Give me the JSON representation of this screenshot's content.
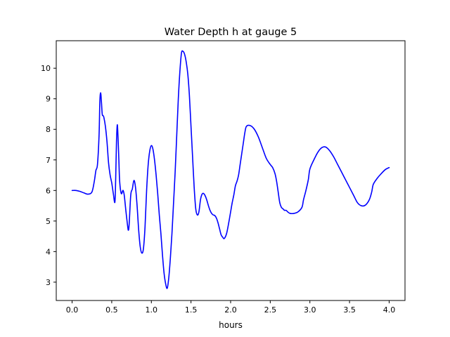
{
  "figure": {
    "title": "Water Depth h at gauge 5",
    "xlabel": "hours",
    "ylabel": ""
  },
  "chart_data": {
    "type": "line",
    "title": "Water Depth h at gauge 5",
    "xlabel": "hours",
    "ylabel": "",
    "xlim": [
      -0.2,
      4.2
    ],
    "ylim": [
      2.4,
      10.9
    ],
    "xticks": [
      0.0,
      0.5,
      1.0,
      1.5,
      2.0,
      2.5,
      3.0,
      3.5,
      4.0
    ],
    "xtick_labels": [
      "0.0",
      "0.5",
      "1.0",
      "1.5",
      "2.0",
      "2.5",
      "3.0",
      "3.5",
      "4.0"
    ],
    "yticks": [
      3,
      4,
      5,
      6,
      7,
      8,
      9,
      10
    ],
    "ytick_labels": [
      "3",
      "4",
      "5",
      "6",
      "7",
      "8",
      "9",
      "10"
    ],
    "grid": false,
    "series": [
      {
        "color": "#0000ff",
        "x": [
          0.0,
          0.05,
          0.1,
          0.15,
          0.2,
          0.25,
          0.28,
          0.3,
          0.32,
          0.34,
          0.35,
          0.36,
          0.37,
          0.38,
          0.39,
          0.4,
          0.42,
          0.44,
          0.46,
          0.48,
          0.5,
          0.52,
          0.54,
          0.55,
          0.56,
          0.57,
          0.58,
          0.59,
          0.6,
          0.62,
          0.64,
          0.65,
          0.66,
          0.68,
          0.7,
          0.71,
          0.72,
          0.74,
          0.76,
          0.78,
          0.8,
          0.82,
          0.84,
          0.86,
          0.88,
          0.9,
          0.92,
          0.94,
          0.96,
          0.98,
          1.0,
          1.02,
          1.04,
          1.06,
          1.08,
          1.1,
          1.12,
          1.14,
          1.16,
          1.18,
          1.2,
          1.22,
          1.24,
          1.26,
          1.28,
          1.3,
          1.32,
          1.34,
          1.36,
          1.38,
          1.4,
          1.42,
          1.44,
          1.46,
          1.48,
          1.5,
          1.52,
          1.54,
          1.56,
          1.58,
          1.6,
          1.62,
          1.64,
          1.66,
          1.68,
          1.7,
          1.72,
          1.74,
          1.76,
          1.78,
          1.8,
          1.82,
          1.84,
          1.86,
          1.88,
          1.9,
          1.92,
          1.95,
          1.98,
          2.0,
          2.02,
          2.04,
          2.06,
          2.08,
          2.1,
          2.12,
          2.14,
          2.16,
          2.18,
          2.2,
          2.25,
          2.3,
          2.35,
          2.4,
          2.45,
          2.5,
          2.53,
          2.56,
          2.58,
          2.6,
          2.62,
          2.64,
          2.66,
          2.68,
          2.7,
          2.72,
          2.75,
          2.8,
          2.85,
          2.9,
          2.92,
          2.95,
          2.98,
          3.0,
          3.05,
          3.1,
          3.15,
          3.2,
          3.25,
          3.3,
          3.35,
          3.4,
          3.45,
          3.5,
          3.55,
          3.6,
          3.65,
          3.7,
          3.75,
          3.78,
          3.8,
          3.85,
          3.9,
          3.95,
          4.0
        ],
        "y": [
          6.0,
          6.0,
          5.97,
          5.92,
          5.88,
          5.95,
          6.3,
          6.65,
          6.85,
          7.8,
          8.9,
          9.2,
          8.9,
          8.5,
          8.45,
          8.4,
          8.1,
          7.6,
          6.9,
          6.5,
          6.25,
          5.9,
          5.62,
          6.4,
          7.6,
          8.15,
          7.7,
          7.0,
          6.3,
          5.9,
          6.0,
          5.95,
          5.8,
          5.3,
          4.85,
          4.7,
          4.9,
          5.85,
          6.05,
          6.33,
          6.1,
          5.5,
          4.7,
          4.15,
          3.95,
          4.1,
          4.8,
          6.0,
          6.85,
          7.3,
          7.47,
          7.35,
          7.0,
          6.5,
          5.9,
          5.2,
          4.6,
          3.9,
          3.3,
          2.95,
          2.8,
          3.15,
          3.8,
          4.6,
          5.6,
          6.6,
          7.8,
          9.0,
          9.9,
          10.5,
          10.55,
          10.45,
          10.2,
          9.8,
          9.1,
          8.1,
          7.1,
          6.1,
          5.4,
          5.2,
          5.3,
          5.7,
          5.88,
          5.9,
          5.82,
          5.68,
          5.5,
          5.35,
          5.25,
          5.2,
          5.18,
          5.1,
          4.95,
          4.75,
          4.55,
          4.47,
          4.43,
          4.6,
          5.0,
          5.3,
          5.6,
          5.85,
          6.15,
          6.3,
          6.5,
          6.85,
          7.2,
          7.55,
          7.9,
          8.1,
          8.12,
          8.0,
          7.75,
          7.4,
          7.05,
          6.85,
          6.75,
          6.55,
          6.3,
          5.95,
          5.6,
          5.45,
          5.4,
          5.35,
          5.35,
          5.3,
          5.25,
          5.25,
          5.3,
          5.45,
          5.7,
          6.0,
          6.35,
          6.7,
          7.0,
          7.25,
          7.4,
          7.42,
          7.3,
          7.1,
          6.85,
          6.6,
          6.35,
          6.1,
          5.85,
          5.6,
          5.5,
          5.52,
          5.7,
          5.95,
          6.2,
          6.4,
          6.55,
          6.68,
          6.75
        ]
      }
    ]
  }
}
